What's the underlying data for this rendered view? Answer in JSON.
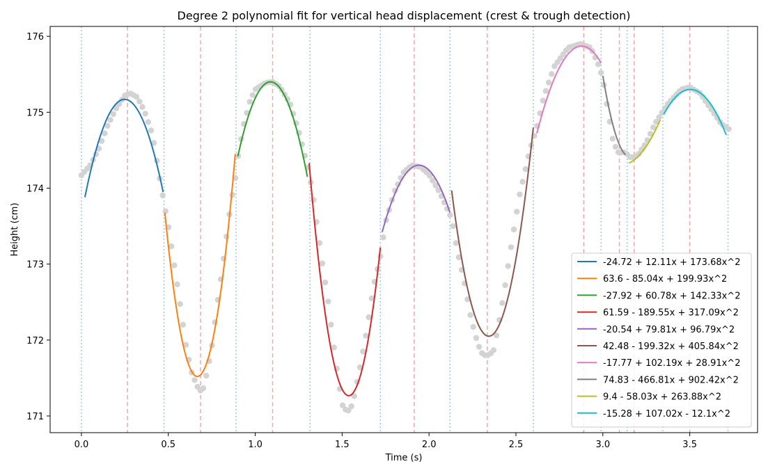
{
  "chart_data": {
    "type": "line",
    "title": "Degree 2 polynomial fit for vertical head displacement (crest & trough detection)",
    "xlabel": "Time (s)",
    "ylabel": "Height (cm)",
    "xlim": [
      -0.18,
      3.89
    ],
    "ylim": [
      170.78,
      176.13
    ],
    "x_ticks": [
      0.0,
      0.5,
      1.0,
      1.5,
      2.0,
      2.5,
      3.0,
      3.5
    ],
    "x_tick_labels": [
      "0.0",
      "0.5",
      "1.0",
      "1.5",
      "2.0",
      "2.5",
      "3.0",
      "3.5"
    ],
    "y_ticks": [
      171,
      172,
      173,
      174,
      175,
      176
    ],
    "y_tick_labels": [
      "171",
      "172",
      "173",
      "174",
      "175",
      "176"
    ],
    "grid": false,
    "legend_position": "lower-right",
    "raw_data": {
      "color": "#d3d3d3",
      "anchors": [
        [
          0.0,
          174.17
        ],
        [
          0.05,
          174.3
        ],
        [
          0.1,
          174.52
        ],
        [
          0.15,
          174.82
        ],
        [
          0.2,
          175.05
        ],
        [
          0.25,
          175.22
        ],
        [
          0.28,
          175.25
        ],
        [
          0.32,
          175.2
        ],
        [
          0.36,
          175.03
        ],
        [
          0.41,
          174.7
        ],
        [
          0.46,
          174.0
        ],
        [
          0.48,
          173.75
        ],
        [
          0.5,
          173.5
        ],
        [
          0.53,
          173.05
        ],
        [
          0.56,
          172.6
        ],
        [
          0.6,
          171.95
        ],
        [
          0.63,
          171.6
        ],
        [
          0.66,
          171.42
        ],
        [
          0.68,
          171.33
        ],
        [
          0.7,
          171.35
        ],
        [
          0.72,
          171.55
        ],
        [
          0.75,
          171.9
        ],
        [
          0.78,
          172.45
        ],
        [
          0.82,
          173.1
        ],
        [
          0.86,
          173.8
        ],
        [
          0.89,
          174.2
        ],
        [
          0.9,
          174.4
        ],
        [
          0.93,
          174.8
        ],
        [
          0.97,
          175.15
        ],
        [
          1.0,
          175.3
        ],
        [
          1.06,
          175.39
        ],
        [
          1.1,
          175.4
        ],
        [
          1.14,
          175.34
        ],
        [
          1.2,
          175.12
        ],
        [
          1.25,
          174.75
        ],
        [
          1.3,
          174.3
        ],
        [
          1.33,
          173.95
        ],
        [
          1.35,
          173.6
        ],
        [
          1.38,
          173.1
        ],
        [
          1.42,
          172.5
        ],
        [
          1.45,
          171.95
        ],
        [
          1.48,
          171.45
        ],
        [
          1.5,
          171.15
        ],
        [
          1.53,
          171.05
        ],
        [
          1.56,
          171.15
        ],
        [
          1.6,
          171.6
        ],
        [
          1.64,
          172.1
        ],
        [
          1.68,
          172.7
        ],
        [
          1.72,
          173.1
        ],
        [
          1.75,
          173.55
        ],
        [
          1.8,
          173.95
        ],
        [
          1.85,
          174.2
        ],
        [
          1.9,
          174.3
        ],
        [
          1.95,
          174.28
        ],
        [
          2.0,
          174.18
        ],
        [
          2.06,
          173.95
        ],
        [
          2.1,
          173.75
        ],
        [
          2.13,
          173.6
        ],
        [
          2.16,
          173.2
        ],
        [
          2.2,
          172.8
        ],
        [
          2.24,
          172.3
        ],
        [
          2.28,
          171.95
        ],
        [
          2.31,
          171.8
        ],
        [
          2.34,
          171.8
        ],
        [
          2.37,
          171.85
        ],
        [
          2.4,
          172.2
        ],
        [
          2.43,
          172.6
        ],
        [
          2.47,
          173.2
        ],
        [
          2.52,
          173.9
        ],
        [
          2.58,
          174.5
        ],
        [
          2.62,
          174.8
        ],
        [
          2.66,
          175.2
        ],
        [
          2.72,
          175.6
        ],
        [
          2.8,
          175.85
        ],
        [
          2.87,
          175.9
        ],
        [
          2.93,
          175.85
        ],
        [
          2.97,
          175.65
        ],
        [
          3.0,
          175.45
        ],
        [
          3.03,
          175.0
        ],
        [
          3.06,
          174.6
        ],
        [
          3.09,
          174.47
        ],
        [
          3.13,
          174.47
        ],
        [
          3.16,
          174.4
        ],
        [
          3.2,
          174.43
        ],
        [
          3.25,
          174.6
        ],
        [
          3.3,
          174.85
        ],
        [
          3.37,
          175.1
        ],
        [
          3.45,
          175.3
        ],
        [
          3.5,
          175.33
        ],
        [
          3.56,
          175.25
        ],
        [
          3.62,
          175.05
        ],
        [
          3.68,
          174.85
        ],
        [
          3.73,
          174.77
        ]
      ]
    },
    "crest_lines": [
      0.265,
      0.685,
      1.1,
      1.915,
      2.335,
      2.89,
      3.095,
      3.18,
      3.5
    ],
    "segment_boundaries": [
      0.0,
      0.475,
      0.89,
      1.315,
      1.72,
      2.12,
      2.6,
      2.99,
      3.14,
      3.345,
      3.72
    ],
    "series": [
      {
        "name": "-24.72 + 12.11x + 173.68x^2",
        "color": "#1f77b4",
        "x_range": [
          0.02,
          0.47
        ],
        "points": [
          [
            0.02,
            173.88
          ],
          [
            0.25,
            175.17
          ],
          [
            0.47,
            173.95
          ]
        ]
      },
      {
        "name": "63.6 - 85.04x + 199.93x^2",
        "color": "#ff7f0e",
        "x_range": [
          0.48,
          0.885
        ],
        "points": [
          [
            0.48,
            173.68
          ],
          [
            0.67,
            171.52
          ],
          [
            0.885,
            174.45
          ]
        ]
      },
      {
        "name": "-27.92 + 60.78x + 142.33x^2",
        "color": "#2ca02c",
        "x_range": [
          0.9,
          1.3
        ],
        "points": [
          [
            0.9,
            174.42
          ],
          [
            1.09,
            175.4
          ],
          [
            1.3,
            174.15
          ]
        ]
      },
      {
        "name": "61.59 - 189.55x + 317.09x^2",
        "color": "#d62728",
        "x_range": [
          1.31,
          1.72
        ],
        "points": [
          [
            1.31,
            174.33
          ],
          [
            1.53,
            171.27
          ],
          [
            1.72,
            173.22
          ]
        ]
      },
      {
        "name": "-20.54 + 79.81x + 96.79x^2",
        "color": "#9467bd",
        "x_range": [
          1.73,
          2.12
        ],
        "points": [
          [
            1.73,
            173.42
          ],
          [
            1.93,
            174.3
          ],
          [
            2.12,
            173.68
          ]
        ]
      },
      {
        "name": "42.48 - 199.32x + 405.84x^2",
        "color": "#8c564b",
        "x_range": [
          2.13,
          2.6
        ],
        "points": [
          [
            2.13,
            173.97
          ],
          [
            2.34,
            172.05
          ],
          [
            2.6,
            174.8
          ]
        ]
      },
      {
        "name": "-17.77 + 102.19x + 28.91x^2",
        "color": "#e377c2",
        "x_range": [
          2.62,
          2.99
        ],
        "points": [
          [
            2.62,
            174.72
          ],
          [
            2.87,
            175.87
          ],
          [
            2.99,
            175.65
          ]
        ]
      },
      {
        "name": "74.83 - 466.81x + 902.42x^2",
        "color": "#7f7f7f",
        "x_range": [
          3.0,
          3.13
        ],
        "points": [
          [
            3.0,
            175.48
          ],
          [
            3.09,
            174.6
          ],
          [
            3.13,
            174.44
          ]
        ]
      },
      {
        "name": "9.4 - 58.03x + 263.88x^2",
        "color": "#bcbd22",
        "x_range": [
          3.15,
          3.33
        ],
        "points": [
          [
            3.15,
            174.33
          ],
          [
            3.24,
            174.52
          ],
          [
            3.33,
            174.9
          ]
        ]
      },
      {
        "name": "-15.28 + 107.02x - 12.1x^2",
        "color": "#17becf",
        "x_range": [
          3.35,
          3.71
        ],
        "points": [
          [
            3.35,
            174.97
          ],
          [
            3.5,
            175.3
          ],
          [
            3.71,
            174.7
          ]
        ]
      }
    ]
  }
}
